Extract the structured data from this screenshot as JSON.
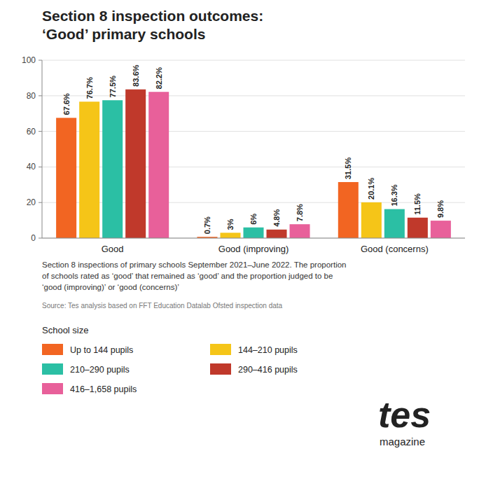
{
  "chart_data": {
    "type": "bar",
    "title": "Section 8 inspection outcomes:",
    "subtitle": "‘Good’ primary schools",
    "categories": [
      "Good",
      "Good (improving)",
      "Good (concerns)"
    ],
    "series": [
      {
        "name": "Up to 144 pupils",
        "color": "#f26522",
        "values": [
          67.6,
          0.7,
          31.5
        ],
        "value_labels": [
          "67.6%",
          "0.7%",
          "31.5%"
        ]
      },
      {
        "name": "144–210 pupils",
        "color": "#f5c518",
        "values": [
          76.7,
          3.0,
          20.1
        ],
        "value_labels": [
          "76.7%",
          "3%",
          "20.1%"
        ]
      },
      {
        "name": "210–290 pupils",
        "color": "#2bbfa4",
        "values": [
          77.5,
          6.0,
          16.3
        ],
        "value_labels": [
          "77.5%",
          "6%",
          "16.3%"
        ]
      },
      {
        "name": "290–416 pupils",
        "color": "#c0392b",
        "values": [
          83.6,
          4.8,
          11.5
        ],
        "value_labels": [
          "83.6%",
          "4.8%",
          "11.5%"
        ]
      },
      {
        "name": "416–1,658 pupils",
        "color": "#e8609a",
        "values": [
          82.2,
          7.8,
          9.8
        ],
        "value_labels": [
          "82.2%",
          "7.8%",
          "9.8%"
        ]
      }
    ],
    "ylim": [
      0,
      100
    ],
    "yticks": [
      0,
      20,
      40,
      60,
      80,
      100
    ],
    "grid": true,
    "data_labels": true,
    "legend": "bottom",
    "legend_title": "School size",
    "footnote": "Section 8 inspections of primary schools September 2021–June 2022. The proportion\nof schools rated as ‘good’ that remained as ‘good’ and the proportion judged to be\n‘good (improving)’ or ‘good (concerns)’",
    "source": "Source: Tes analysis based on FFT Education Datalab Ofsted inspection data",
    "annotations": [
      "tes",
      "magazine"
    ]
  }
}
